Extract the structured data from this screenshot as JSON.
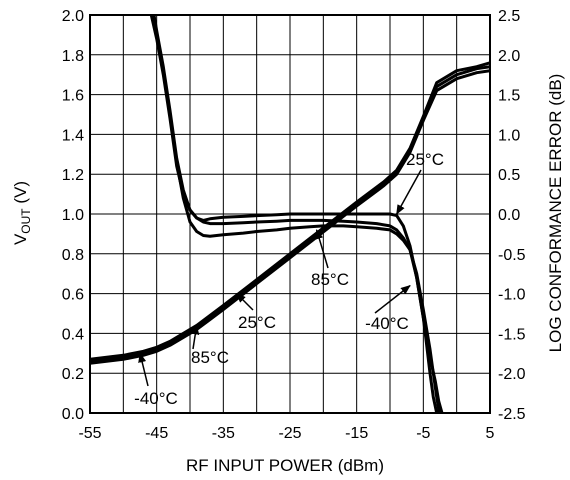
{
  "chart_data": {
    "type": "line",
    "xlabel": "RF INPUT POWER (dBm)",
    "ylabel_left": {
      "main": "V",
      "sub": "OUT",
      "rest": " (V)"
    },
    "ylabel_right": "LOG CONFORMANCE ERROR (dB)",
    "xlim": [
      -55,
      5
    ],
    "ylim_left": [
      0.0,
      2.0
    ],
    "ylim_right": [
      -2.5,
      2.5
    ],
    "x_ticks": [
      "-55",
      "-45",
      "-35",
      "-25",
      "-15",
      "-5",
      "5"
    ],
    "x_tick_values": [
      -55,
      -45,
      -35,
      -25,
      -15,
      -5,
      5
    ],
    "y_left_ticks": [
      "0.0",
      "0.2",
      "0.4",
      "0.6",
      "0.8",
      "1.0",
      "1.2",
      "1.4",
      "1.6",
      "1.8",
      "2.0"
    ],
    "y_left_tick_values": [
      0.0,
      0.2,
      0.4,
      0.6,
      0.8,
      1.0,
      1.2,
      1.4,
      1.6,
      1.8,
      2.0
    ],
    "y_right_ticks": [
      "2.5",
      "2.0",
      "1.5",
      "1.0",
      "0.5",
      "0.0",
      "-0.5",
      "-1.0",
      "-1.5",
      "-2.0",
      "-2.5"
    ],
    "y_right_tick_values": [
      2.5,
      2.0,
      1.5,
      1.0,
      0.5,
      0.0,
      -0.5,
      -1.0,
      -1.5,
      -2.0,
      -2.5
    ],
    "grid": true,
    "vout_series": [
      {
        "name": "-40°C",
        "axis": "left",
        "x": [
          -55,
          -50,
          -47,
          -45,
          -43,
          -41,
          -39,
          -37,
          -35,
          -30,
          -25,
          -20,
          -15,
          -11,
          -9,
          -7,
          -5,
          -3,
          0,
          3,
          5
        ],
        "y": [
          0.25,
          0.27,
          0.29,
          0.31,
          0.34,
          0.38,
          0.42,
          0.47,
          0.52,
          0.65,
          0.78,
          0.91,
          1.04,
          1.14,
          1.2,
          1.31,
          1.47,
          1.62,
          1.68,
          1.71,
          1.72
        ]
      },
      {
        "name": "25°C",
        "axis": "left",
        "x": [
          -55,
          -50,
          -47,
          -45,
          -43,
          -41,
          -39,
          -37,
          -35,
          -30,
          -25,
          -20,
          -15,
          -11,
          -9,
          -7,
          -5,
          -3,
          0,
          3,
          5
        ],
        "y": [
          0.26,
          0.28,
          0.3,
          0.32,
          0.35,
          0.39,
          0.43,
          0.48,
          0.53,
          0.66,
          0.79,
          0.92,
          1.05,
          1.15,
          1.21,
          1.32,
          1.48,
          1.64,
          1.7,
          1.73,
          1.74
        ]
      },
      {
        "name": "85°C",
        "axis": "left",
        "x": [
          -55,
          -50,
          -47,
          -45,
          -43,
          -41,
          -39,
          -37,
          -35,
          -30,
          -25,
          -20,
          -15,
          -11,
          -9,
          -7,
          -5,
          -3,
          0,
          3,
          5
        ],
        "y": [
          0.27,
          0.29,
          0.31,
          0.33,
          0.36,
          0.4,
          0.44,
          0.49,
          0.54,
          0.67,
          0.8,
          0.93,
          1.06,
          1.16,
          1.22,
          1.33,
          1.49,
          1.66,
          1.72,
          1.74,
          1.76
        ]
      }
    ],
    "error_series": [
      {
        "name": "25°C",
        "axis": "right",
        "x": [
          -45.8,
          -45,
          -44,
          -43,
          -42,
          -41,
          -40,
          -39,
          -38,
          -37,
          -35,
          -32,
          -30,
          -27,
          -25,
          -22,
          -20,
          -17,
          -15,
          -12,
          -10,
          -9,
          -8,
          -7,
          -6,
          -5,
          -4.5,
          -4,
          -3.5,
          -3
        ],
        "y": [
          2.5,
          2.2,
          1.75,
          1.2,
          0.6,
          0.25,
          0.05,
          -0.05,
          -0.08,
          -0.06,
          -0.04,
          -0.03,
          -0.02,
          -0.01,
          0.0,
          0.0,
          0.0,
          0.0,
          0.0,
          0.0,
          0.0,
          -0.02,
          -0.15,
          -0.4,
          -0.8,
          -1.3,
          -1.65,
          -2.0,
          -2.3,
          -2.5
        ]
      },
      {
        "name": "85°C",
        "axis": "right",
        "x": [
          -45.6,
          -45,
          -44,
          -43,
          -42,
          -41,
          -40,
          -39,
          -38,
          -37,
          -35,
          -32,
          -30,
          -27,
          -25,
          -22,
          -20,
          -17,
          -15,
          -12,
          -10,
          -9,
          -8,
          -7,
          -6,
          -5,
          -4,
          -3.5,
          -3,
          -2.6
        ],
        "y": [
          2.5,
          2.25,
          1.8,
          1.25,
          0.65,
          0.2,
          -0.1,
          -0.22,
          -0.27,
          -0.28,
          -0.26,
          -0.24,
          -0.22,
          -0.2,
          -0.18,
          -0.16,
          -0.15,
          -0.15,
          -0.16,
          -0.18,
          -0.2,
          -0.25,
          -0.33,
          -0.45,
          -0.75,
          -1.2,
          -1.7,
          -2.0,
          -2.3,
          -2.5
        ]
      },
      {
        "name": "-40°C",
        "axis": "right",
        "x": [
          -45.4,
          -45,
          -44,
          -43,
          -42,
          -41,
          -40,
          -39,
          -38,
          -37,
          -35,
          -32,
          -30,
          -27,
          -25,
          -22,
          -20,
          -17,
          -15,
          -12,
          -10,
          -9,
          -8,
          -7,
          -6,
          -5,
          -4,
          -3.2,
          -2.7,
          -2.2
        ],
        "y": [
          2.5,
          2.3,
          1.85,
          1.3,
          0.7,
          0.3,
          0.05,
          -0.05,
          -0.1,
          -0.12,
          -0.12,
          -0.11,
          -0.1,
          -0.09,
          -0.08,
          -0.08,
          -0.08,
          -0.09,
          -0.1,
          -0.12,
          -0.15,
          -0.2,
          -0.3,
          -0.45,
          -0.8,
          -1.3,
          -1.8,
          -2.1,
          -2.35,
          -2.5
        ]
      }
    ],
    "annotations": [
      {
        "text": "25°C",
        "arrow_to": [
          -9,
          0.0
        ],
        "axis": "right"
      },
      {
        "text": "85°C",
        "arrow_to": [
          -21,
          -0.2
        ],
        "axis": "right"
      },
      {
        "text": "-40°C",
        "arrow_to": [
          -7,
          -0.9
        ],
        "axis": "right"
      },
      {
        "text": "25°C",
        "arrow_to": [
          -33,
          0.6
        ],
        "axis": "left"
      },
      {
        "text": "85°C",
        "arrow_to": [
          -39,
          0.44
        ],
        "axis": "left"
      },
      {
        "text": "-40°C",
        "arrow_to": [
          -47.5,
          0.3
        ],
        "axis": "left"
      }
    ]
  }
}
